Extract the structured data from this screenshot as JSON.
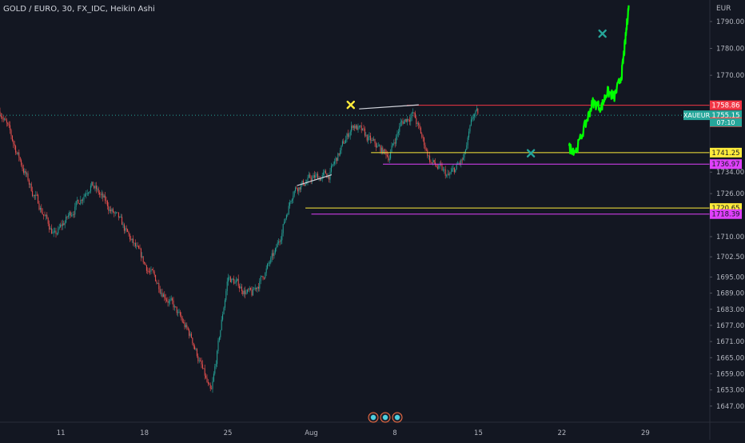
{
  "header": {
    "title": "GOLD / EURO, 30, FX_IDC, Heikin Ashi"
  },
  "colors": {
    "background": "#131722",
    "up": "#26a69a",
    "down": "#ef5350",
    "projection": "#00ff00",
    "price_label": "#26a69a",
    "red_level": "#f23645",
    "yellow_level": "#ffeb3b",
    "magenta_level": "#e040fb",
    "cross_yellow": "#ffeb3b",
    "cross_teal": "#26a69a"
  },
  "chart_data": {
    "type": "candlestick",
    "currency": "EUR",
    "ylim": [
      1641,
      1798
    ],
    "price_ticks": [
      1790.0,
      1780.0,
      1770.0,
      1734.0,
      1726.0,
      1710.0,
      1702.5,
      1695.0,
      1689.0,
      1683.0,
      1677.0,
      1671.0,
      1665.0,
      1659.0,
      1653.0,
      1647.0
    ],
    "date_ticks": [
      {
        "label": "11",
        "day": 11
      },
      {
        "label": "18",
        "day": 18
      },
      {
        "label": "25",
        "day": 25
      },
      {
        "label": "Aug",
        "day": 32
      },
      {
        "label": "8",
        "day": 39
      },
      {
        "label": "15",
        "day": 46
      },
      {
        "label": "22",
        "day": 53
      },
      {
        "label": "29",
        "day": 60
      }
    ],
    "x_range_days": [
      5.9,
      65.4
    ],
    "candles_day_range": [
      5.9,
      46.0
    ],
    "series": [
      {
        "name": "XAUEUR",
        "current_price": 1755.15,
        "countdown": "07:10"
      }
    ],
    "key_points": [
      {
        "day": 6.0,
        "price": 1756.5
      },
      {
        "day": 8.5,
        "price": 1728.0
      },
      {
        "day": 10.5,
        "price": 1710.0
      },
      {
        "day": 13.5,
        "price": 1730.0
      },
      {
        "day": 16.0,
        "price": 1715.0
      },
      {
        "day": 18.0,
        "price": 1700.0
      },
      {
        "day": 20.0,
        "price": 1687.0
      },
      {
        "day": 22.0,
        "price": 1672.0
      },
      {
        "day": 23.6,
        "price": 1650.5
      },
      {
        "day": 25.0,
        "price": 1695.0
      },
      {
        "day": 27.0,
        "price": 1688.0
      },
      {
        "day": 29.0,
        "price": 1704.0
      },
      {
        "day": 30.5,
        "price": 1728.0
      },
      {
        "day": 32.0,
        "price": 1731.5
      },
      {
        "day": 33.5,
        "price": 1733.0
      },
      {
        "day": 35.5,
        "price": 1752.0
      },
      {
        "day": 37.0,
        "price": 1745.0
      },
      {
        "day": 38.5,
        "price": 1740.0
      },
      {
        "day": 39.5,
        "price": 1752.0
      },
      {
        "day": 40.5,
        "price": 1756.0
      },
      {
        "day": 42.0,
        "price": 1738.0
      },
      {
        "day": 43.5,
        "price": 1732.0
      },
      {
        "day": 44.8,
        "price": 1739.0
      },
      {
        "day": 45.6,
        "price": 1755.2
      }
    ],
    "levels": [
      {
        "name": "red-level",
        "price": 1758.86,
        "label": "1758.86",
        "style": "red",
        "from_day": 40.0
      },
      {
        "name": "current-price-level",
        "price": 1755.15,
        "label": "1755.15",
        "style": "dotted",
        "from_day": 5.9
      },
      {
        "name": "ask-level",
        "price": 1754.96,
        "label": "1754.96",
        "style": "none",
        "from_day": 65.4
      },
      {
        "name": "yellow-level-upper",
        "price": 1741.25,
        "label": "1741.25",
        "style": "yellow",
        "from_day": 37.0
      },
      {
        "name": "magenta-level-upper",
        "price": 1736.97,
        "label": "1736.97",
        "style": "magenta",
        "from_day": 38.0
      },
      {
        "name": "yellow-level-lower",
        "price": 1720.65,
        "label": "1720.65",
        "style": "yellow",
        "from_day": 31.5
      },
      {
        "name": "magenta-level-lower",
        "price": 1718.39,
        "label": "1718.39",
        "style": "magenta",
        "from_day": 32.0
      }
    ],
    "trend_lines": [
      {
        "name": "trendline-left",
        "from": {
          "day": 30.8,
          "price": 1729.0
        },
        "to": {
          "day": 33.7,
          "price": 1733.0
        }
      },
      {
        "name": "trendline-right",
        "from": {
          "day": 36.0,
          "price": 1757.5
        },
        "to": {
          "day": 41.0,
          "price": 1759.0
        }
      }
    ],
    "markers": [
      {
        "name": "yellow-cross-marker",
        "day": 35.3,
        "price": 1759.0,
        "style": "cross_yellow"
      },
      {
        "name": "teal-cross-marker-lower",
        "day": 50.4,
        "price": 1741.0,
        "style": "cross_teal"
      },
      {
        "name": "teal-cross-marker-upper",
        "day": 56.4,
        "price": 1785.5,
        "style": "cross_teal"
      }
    ],
    "projection": [
      {
        "day": 53.6,
        "price": 1743.0
      },
      {
        "day": 54.2,
        "price": 1742.0
      },
      {
        "day": 55.0,
        "price": 1752.0
      },
      {
        "day": 55.6,
        "price": 1760.0
      },
      {
        "day": 56.3,
        "price": 1758.0
      },
      {
        "day": 56.8,
        "price": 1764.0
      },
      {
        "day": 57.4,
        "price": 1762.0
      },
      {
        "day": 58.0,
        "price": 1770.0
      },
      {
        "day": 58.3,
        "price": 1782.0
      },
      {
        "day": 58.6,
        "price": 1796.0
      }
    ]
  }
}
